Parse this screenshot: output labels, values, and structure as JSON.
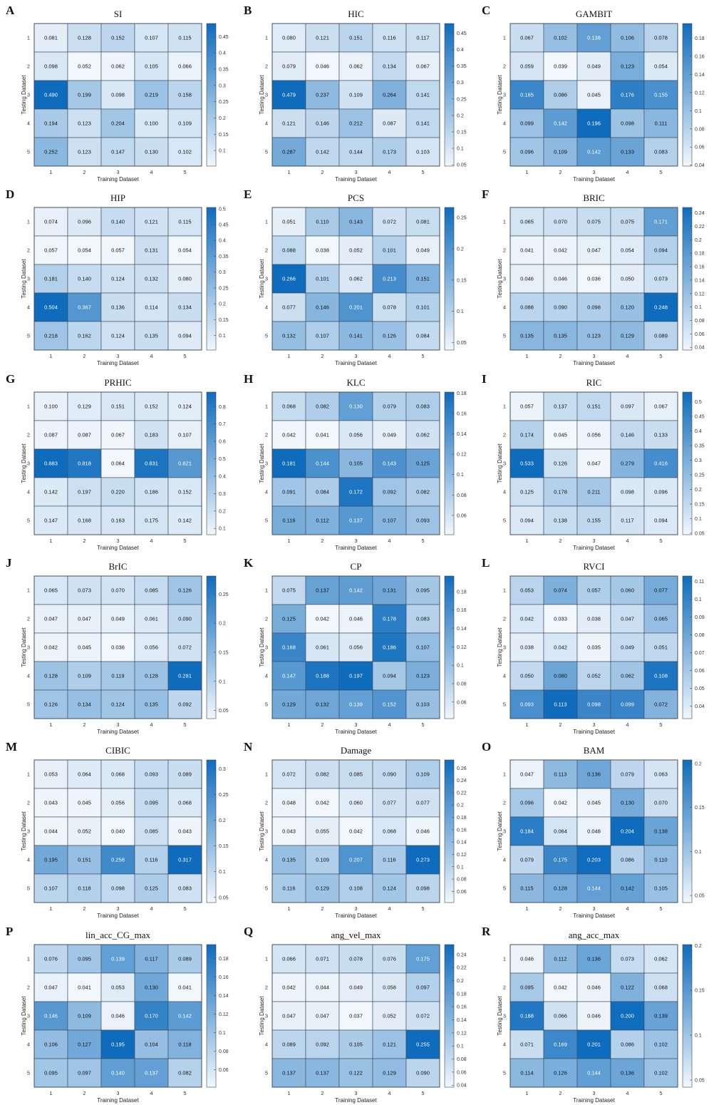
{
  "figure": {
    "xlabel": "Training Dataset",
    "ylabel": "Testing Dataset"
  },
  "colors": {
    "low": "#f2f7fc",
    "high": "#0f6cbd",
    "grid_line": "#3a4a5a",
    "text_dark": "#111111",
    "text_light": "#ffffff"
  },
  "chart_data": [
    {
      "letter": "A",
      "title": "SI",
      "type": "heatmap",
      "x": [
        "1",
        "2",
        "3",
        "4",
        "5"
      ],
      "y": [
        "1",
        "2",
        "3",
        "4",
        "5"
      ],
      "values": [
        [
          0.081,
          0.128,
          0.152,
          0.107,
          0.115
        ],
        [
          0.098,
          0.052,
          0.062,
          0.105,
          0.066
        ],
        [
          0.49,
          0.199,
          0.098,
          0.219,
          0.158
        ],
        [
          0.194,
          0.123,
          0.204,
          0.1,
          0.109
        ],
        [
          0.252,
          0.123,
          0.147,
          0.13,
          0.102
        ]
      ],
      "colorbar_ticks": [
        "0.1",
        "0.15",
        "0.2",
        "0.25",
        "0.3",
        "0.35",
        "0.4",
        "0.45"
      ],
      "clim": [
        0.052,
        0.49
      ]
    },
    {
      "letter": "B",
      "title": "HIC",
      "type": "heatmap",
      "x": [
        "1",
        "2",
        "3",
        "4",
        "5"
      ],
      "y": [
        "1",
        "2",
        "3",
        "4",
        "5"
      ],
      "values": [
        [
          0.08,
          0.121,
          0.151,
          0.116,
          0.117
        ],
        [
          0.079,
          0.046,
          0.062,
          0.134,
          0.067
        ],
        [
          0.479,
          0.237,
          0.109,
          0.264,
          0.141
        ],
        [
          0.121,
          0.146,
          0.212,
          0.087,
          0.141
        ],
        [
          0.287,
          0.142,
          0.144,
          0.173,
          0.103
        ]
      ],
      "colorbar_ticks": [
        "0.05",
        "0.1",
        "0.15",
        "0.2",
        "0.25",
        "0.3",
        "0.35",
        "0.4",
        "0.45"
      ],
      "clim": [
        0.046,
        0.479
      ]
    },
    {
      "letter": "C",
      "title": "GAMBIT",
      "type": "heatmap",
      "x": [
        "1",
        "2",
        "3",
        "4",
        "5"
      ],
      "y": [
        "1",
        "2",
        "3",
        "4",
        "5"
      ],
      "values": [
        [
          0.067,
          0.102,
          0.138,
          0.106,
          0.078
        ],
        [
          0.059,
          0.039,
          0.049,
          0.123,
          0.054
        ],
        [
          0.165,
          0.086,
          0.045,
          0.176,
          0.155
        ],
        [
          0.099,
          0.142,
          0.196,
          0.098,
          0.111
        ],
        [
          0.096,
          0.109,
          0.142,
          0.133,
          0.083
        ]
      ],
      "colorbar_ticks": [
        "0.04",
        "0.06",
        "0.08",
        "0.1",
        "0.12",
        "0.14",
        "0.16",
        "0.18"
      ],
      "clim": [
        0.039,
        0.196
      ]
    },
    {
      "letter": "D",
      "title": "HIP",
      "type": "heatmap",
      "x": [
        "1",
        "2",
        "3",
        "4",
        "5"
      ],
      "y": [
        "1",
        "2",
        "3",
        "4",
        "5"
      ],
      "values": [
        [
          0.074,
          0.096,
          0.14,
          0.121,
          0.115
        ],
        [
          0.057,
          0.054,
          0.057,
          0.131,
          0.054
        ],
        [
          0.181,
          0.14,
          0.124,
          0.132,
          0.08
        ],
        [
          0.504,
          0.367,
          0.136,
          0.114,
          0.134
        ],
        [
          0.218,
          0.162,
          0.124,
          0.135,
          0.094
        ]
      ],
      "colorbar_ticks": [
        "0.1",
        "0.15",
        "0.2",
        "0.25",
        "0.3",
        "0.35",
        "0.4",
        "0.45",
        "0.5"
      ],
      "clim": [
        0.054,
        0.504
      ]
    },
    {
      "letter": "E",
      "title": "PCS",
      "type": "heatmap",
      "x": [
        "1",
        "2",
        "3",
        "4",
        "5"
      ],
      "y": [
        "1",
        "2",
        "3",
        "4",
        "5"
      ],
      "values": [
        [
          0.051,
          0.11,
          0.143,
          0.072,
          0.081
        ],
        [
          0.088,
          0.038,
          0.052,
          0.101,
          0.049
        ],
        [
          0.266,
          0.101,
          0.062,
          0.213,
          0.151
        ],
        [
          0.077,
          0.146,
          0.201,
          0.078,
          0.101
        ],
        [
          0.132,
          0.107,
          0.141,
          0.126,
          0.084
        ]
      ],
      "colorbar_ticks": [
        "0.05",
        "0.1",
        "0.15",
        "0.2",
        "0.25"
      ],
      "clim": [
        0.038,
        0.266
      ]
    },
    {
      "letter": "F",
      "title": "BRIC",
      "type": "heatmap",
      "x": [
        "1",
        "2",
        "3",
        "4",
        "5"
      ],
      "y": [
        "1",
        "2",
        "3",
        "4",
        "5"
      ],
      "values": [
        [
          0.065,
          0.07,
          0.075,
          0.075,
          0.171
        ],
        [
          0.041,
          0.042,
          0.047,
          0.054,
          0.094
        ],
        [
          0.046,
          0.046,
          0.036,
          0.05,
          0.073
        ],
        [
          0.088,
          0.09,
          0.098,
          0.12,
          0.248
        ],
        [
          0.135,
          0.135,
          0.123,
          0.129,
          0.089
        ]
      ],
      "colorbar_ticks": [
        "0.04",
        "0.06",
        "0.08",
        "0.1",
        "0.12",
        "0.14",
        "0.16",
        "0.18",
        "0.2",
        "0.22",
        "0.24"
      ],
      "clim": [
        0.036,
        0.248
      ]
    },
    {
      "letter": "G",
      "title": "PRHIC",
      "type": "heatmap",
      "x": [
        "1",
        "2",
        "3",
        "4",
        "5"
      ],
      "y": [
        "1",
        "2",
        "3",
        "4",
        "5"
      ],
      "values": [
        [
          0.1,
          0.129,
          0.151,
          0.152,
          0.124
        ],
        [
          0.087,
          0.087,
          0.067,
          0.183,
          0.107
        ],
        [
          0.883,
          0.818,
          0.064,
          0.831,
          0.621
        ],
        [
          0.142,
          0.197,
          0.22,
          0.186,
          0.152
        ],
        [
          0.147,
          0.168,
          0.163,
          0.175,
          0.142
        ]
      ],
      "colorbar_ticks": [
        "0.1",
        "0.2",
        "0.3",
        "0.4",
        "0.5",
        "0.6",
        "0.7",
        "0.8"
      ],
      "clim": [
        0.064,
        0.883
      ]
    },
    {
      "letter": "H",
      "title": "KLC",
      "type": "heatmap",
      "x": [
        "1",
        "2",
        "3",
        "4",
        "5"
      ],
      "y": [
        "1",
        "2",
        "3",
        "4",
        "5"
      ],
      "values": [
        [
          0.068,
          0.082,
          0.13,
          0.079,
          0.083
        ],
        [
          0.042,
          0.041,
          0.056,
          0.049,
          0.062
        ],
        [
          0.181,
          0.144,
          0.105,
          0.143,
          0.125
        ],
        [
          0.091,
          0.084,
          0.172,
          0.092,
          0.082
        ],
        [
          0.116,
          0.112,
          0.137,
          0.107,
          0.093
        ]
      ],
      "colorbar_ticks": [
        "0.06",
        "0.08",
        "0.1",
        "0.12",
        "0.14",
        "0.16",
        "0.18"
      ],
      "clim": [
        0.041,
        0.181
      ]
    },
    {
      "letter": "I",
      "title": "RIC",
      "type": "heatmap",
      "x": [
        "1",
        "2",
        "3",
        "4",
        "5"
      ],
      "y": [
        "1",
        "2",
        "3",
        "4",
        "5"
      ],
      "values": [
        [
          0.057,
          0.137,
          0.151,
          0.097,
          0.067
        ],
        [
          0.174,
          0.045,
          0.056,
          0.146,
          0.133
        ],
        [
          0.533,
          0.126,
          0.047,
          0.279,
          0.416
        ],
        [
          0.125,
          0.178,
          0.211,
          0.098,
          0.096
        ],
        [
          0.094,
          0.138,
          0.155,
          0.117,
          0.094
        ]
      ],
      "colorbar_ticks": [
        "0.05",
        "0.1",
        "0.15",
        "0.2",
        "0.25",
        "0.3",
        "0.35",
        "0.4",
        "0.45",
        "0.5"
      ],
      "clim": [
        0.045,
        0.533
      ]
    },
    {
      "letter": "J",
      "title": "BrIC",
      "type": "heatmap",
      "x": [
        "1",
        "2",
        "3",
        "4",
        "5"
      ],
      "y": [
        "1",
        "2",
        "3",
        "4",
        "5"
      ],
      "values": [
        [
          0.065,
          0.073,
          0.07,
          0.085,
          0.126
        ],
        [
          0.047,
          0.047,
          0.049,
          0.061,
          0.09
        ],
        [
          0.042,
          0.045,
          0.036,
          0.056,
          0.072
        ],
        [
          0.128,
          0.109,
          0.119,
          0.128,
          0.281
        ],
        [
          0.126,
          0.134,
          0.124,
          0.135,
          0.092
        ]
      ],
      "colorbar_ticks": [
        "0.05",
        "0.1",
        "0.15",
        "0.2",
        "0.25"
      ],
      "clim": [
        0.036,
        0.281
      ]
    },
    {
      "letter": "K",
      "title": "CP",
      "type": "heatmap",
      "x": [
        "1",
        "2",
        "3",
        "4",
        "5"
      ],
      "y": [
        "1",
        "2",
        "3",
        "4",
        "5"
      ],
      "values": [
        [
          0.075,
          0.137,
          0.142,
          0.131,
          0.095
        ],
        [
          0.125,
          0.042,
          0.046,
          0.178,
          0.083
        ],
        [
          0.168,
          0.061,
          0.056,
          0.186,
          0.107
        ],
        [
          0.147,
          0.188,
          0.197,
          0.094,
          0.123
        ],
        [
          0.129,
          0.132,
          0.139,
          0.152,
          0.103
        ]
      ],
      "colorbar_ticks": [
        "0.06",
        "0.08",
        "0.1",
        "0.12",
        "0.14",
        "0.16",
        "0.18"
      ],
      "clim": [
        0.042,
        0.197
      ]
    },
    {
      "letter": "L",
      "title": "RVCI",
      "type": "heatmap",
      "x": [
        "1",
        "2",
        "3",
        "4",
        "5"
      ],
      "y": [
        "1",
        "2",
        "3",
        "4",
        "5"
      ],
      "values": [
        [
          0.053,
          0.074,
          0.057,
          0.06,
          0.077
        ],
        [
          0.042,
          0.033,
          0.038,
          0.047,
          0.065
        ],
        [
          0.038,
          0.042,
          0.035,
          0.049,
          0.051
        ],
        [
          0.05,
          0.08,
          0.052,
          0.062,
          0.108
        ],
        [
          0.093,
          0.113,
          0.098,
          0.099,
          0.072
        ]
      ],
      "colorbar_ticks": [
        "0.04",
        "0.05",
        "0.06",
        "0.07",
        "0.08",
        "0.09",
        "0.1",
        "0.11"
      ],
      "clim": [
        0.033,
        0.113
      ]
    },
    {
      "letter": "M",
      "title": "CIBIC",
      "type": "heatmap",
      "x": [
        "1",
        "2",
        "3",
        "4",
        "5"
      ],
      "y": [
        "1",
        "2",
        "3",
        "4",
        "5"
      ],
      "values": [
        [
          0.053,
          0.064,
          0.068,
          0.093,
          0.089
        ],
        [
          0.043,
          0.045,
          0.056,
          0.095,
          0.068
        ],
        [
          0.044,
          0.052,
          0.04,
          0.085,
          0.043
        ],
        [
          0.195,
          0.151,
          0.258,
          0.116,
          0.317
        ],
        [
          0.107,
          0.118,
          0.098,
          0.125,
          0.083
        ]
      ],
      "colorbar_ticks": [
        "0.05",
        "0.1",
        "0.15",
        "0.2",
        "0.25",
        "0.3"
      ],
      "clim": [
        0.04,
        0.317
      ]
    },
    {
      "letter": "N",
      "title": "Damage",
      "type": "heatmap",
      "x": [
        "1",
        "2",
        "3",
        "4",
        "5"
      ],
      "y": [
        "1",
        "2",
        "3",
        "4",
        "5"
      ],
      "values": [
        [
          0.072,
          0.082,
          0.085,
          0.09,
          0.109
        ],
        [
          0.048,
          0.042,
          0.06,
          0.077,
          0.077
        ],
        [
          0.043,
          0.055,
          0.042,
          0.068,
          0.046
        ],
        [
          0.135,
          0.109,
          0.207,
          0.116,
          0.273
        ],
        [
          0.116,
          0.129,
          0.108,
          0.124,
          0.098
        ]
      ],
      "colorbar_ticks": [
        "0.06",
        "0.08",
        "0.1",
        "0.12",
        "0.14",
        "0.16",
        "0.18",
        "0.2",
        "0.22",
        "0.24",
        "0.26"
      ],
      "clim": [
        0.042,
        0.273
      ]
    },
    {
      "letter": "O",
      "title": "BAM",
      "type": "heatmap",
      "x": [
        "1",
        "2",
        "3",
        "4",
        "5"
      ],
      "y": [
        "1",
        "2",
        "3",
        "4",
        "5"
      ],
      "values": [
        [
          0.047,
          0.113,
          0.136,
          0.079,
          0.063
        ],
        [
          0.096,
          0.042,
          0.045,
          0.13,
          0.07
        ],
        [
          0.184,
          0.064,
          0.048,
          0.204,
          0.138
        ],
        [
          0.079,
          0.175,
          0.203,
          0.086,
          0.11
        ],
        [
          0.115,
          0.128,
          0.144,
          0.142,
          0.105
        ]
      ],
      "colorbar_ticks": [
        "0.05",
        "0.1",
        "0.15",
        "0.2"
      ],
      "clim": [
        0.042,
        0.204
      ]
    },
    {
      "letter": "P",
      "title": "lin_acc_CG_max",
      "type": "heatmap",
      "x": [
        "1",
        "2",
        "3",
        "4",
        "5"
      ],
      "y": [
        "1",
        "2",
        "3",
        "4",
        "5"
      ],
      "values": [
        [
          0.076,
          0.095,
          0.139,
          0.117,
          0.089
        ],
        [
          0.047,
          0.041,
          0.053,
          0.13,
          0.041
        ],
        [
          0.146,
          0.109,
          0.046,
          0.17,
          0.142
        ],
        [
          0.106,
          0.127,
          0.195,
          0.104,
          0.118
        ],
        [
          0.095,
          0.097,
          0.14,
          0.137,
          0.082
        ]
      ],
      "colorbar_ticks": [
        "0.06",
        "0.08",
        "0.1",
        "0.12",
        "0.14",
        "0.16",
        "0.18"
      ],
      "clim": [
        0.041,
        0.195
      ]
    },
    {
      "letter": "Q",
      "title": "ang_vel_max",
      "type": "heatmap",
      "x": [
        "1",
        "2",
        "3",
        "4",
        "5"
      ],
      "y": [
        "1",
        "2",
        "3",
        "4",
        "5"
      ],
      "values": [
        [
          0.066,
          0.071,
          0.078,
          0.076,
          0.175
        ],
        [
          0.042,
          0.044,
          0.049,
          0.058,
          0.097
        ],
        [
          0.047,
          0.047,
          0.037,
          0.052,
          0.072
        ],
        [
          0.089,
          0.092,
          0.105,
          0.121,
          0.255
        ],
        [
          0.137,
          0.137,
          0.122,
          0.129,
          0.09
        ]
      ],
      "colorbar_ticks": [
        "0.04",
        "0.06",
        "0.08",
        "0.1",
        "0.12",
        "0.14",
        "0.16",
        "0.18",
        "0.2",
        "0.22",
        "0.24"
      ],
      "clim": [
        0.037,
        0.255
      ]
    },
    {
      "letter": "R",
      "title": "ang_acc_max",
      "type": "heatmap",
      "x": [
        "1",
        "2",
        "3",
        "4",
        "5"
      ],
      "y": [
        "1",
        "2",
        "3",
        "4",
        "5"
      ],
      "values": [
        [
          0.046,
          0.112,
          0.136,
          0.073,
          0.062
        ],
        [
          0.095,
          0.042,
          0.046,
          0.122,
          0.068
        ],
        [
          0.188,
          0.066,
          0.046,
          0.2,
          0.139
        ],
        [
          0.071,
          0.169,
          0.201,
          0.086,
          0.102
        ],
        [
          0.114,
          0.126,
          0.144,
          0.136,
          0.102
        ]
      ],
      "colorbar_ticks": [
        "0.05",
        "0.1",
        "0.15",
        "0.2"
      ],
      "clim": [
        0.042,
        0.201
      ]
    }
  ]
}
